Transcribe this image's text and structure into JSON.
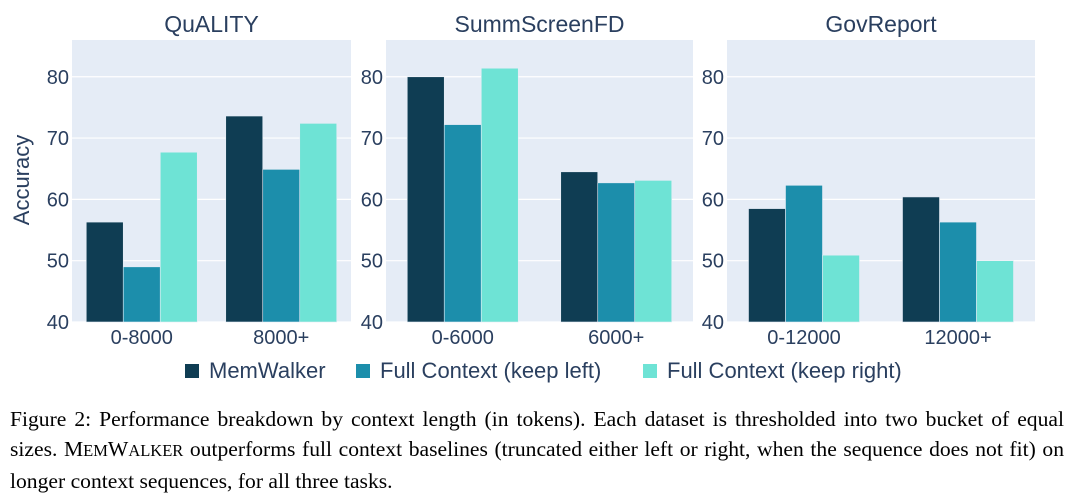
{
  "chart_data": [
    {
      "type": "bar",
      "title": "QuALITY",
      "ylabel": "Accuracy",
      "categories": [
        "0-8000",
        "8000+"
      ],
      "ylim": [
        40,
        86
      ],
      "yticks": [
        40,
        50,
        60,
        70,
        80
      ],
      "series": [
        {
          "name": "MemWalker",
          "values": [
            56.3,
            73.6
          ]
        },
        {
          "name": "Full Context (keep left)",
          "values": [
            49.0,
            64.9
          ]
        },
        {
          "name": "Full Context (keep right)",
          "values": [
            67.7,
            72.4
          ]
        }
      ]
    },
    {
      "type": "bar",
      "title": "SummScreenFD",
      "ylabel": "",
      "categories": [
        "0-6000",
        "6000+"
      ],
      "ylim": [
        40,
        86
      ],
      "yticks": [
        40,
        50,
        60,
        70,
        80
      ],
      "series": [
        {
          "name": "MemWalker",
          "values": [
            80.0,
            64.5
          ]
        },
        {
          "name": "Full Context (keep left)",
          "values": [
            72.2,
            62.7
          ]
        },
        {
          "name": "Full Context (keep right)",
          "values": [
            81.4,
            63.1
          ]
        }
      ]
    },
    {
      "type": "bar",
      "title": "GovReport",
      "ylabel": "",
      "categories": [
        "0-12000",
        "12000+"
      ],
      "ylim": [
        40,
        86
      ],
      "yticks": [
        40,
        50,
        60,
        70,
        80
      ],
      "series": [
        {
          "name": "MemWalker",
          "values": [
            58.5,
            60.4
          ]
        },
        {
          "name": "Full Context (keep left)",
          "values": [
            62.3,
            56.3
          ]
        },
        {
          "name": "Full Context (keep right)",
          "values": [
            50.9,
            50.0
          ]
        }
      ]
    }
  ],
  "legend": {
    "position": "bottom-center",
    "items": [
      {
        "label": "MemWalker",
        "color": "#0f3d53"
      },
      {
        "label": "Full Context (keep left)",
        "color": "#1c8eab"
      },
      {
        "label": "Full Context (keep right)",
        "color": "#6ee3d5"
      }
    ]
  },
  "style": {
    "plot_bg": "#e5ecf6",
    "grid_color": "#ffffff",
    "series_colors": [
      "#0f3d53",
      "#1c8eab",
      "#6ee3d5"
    ],
    "grid": true
  },
  "caption": {
    "label": "Figure 2:",
    "text_before": "Performance breakdown by context length (in tokens). Each dataset is thresholded into two bucket of equal sizes.",
    "name_part1_big": "M",
    "name_part1_small": "EM",
    "name_part2_big": "W",
    "name_part2_small": "ALKER",
    "text_after": "outperforms full context baselines (truncated either left or right, when the sequence does not fit) on longer context sequences, for all three tasks."
  }
}
